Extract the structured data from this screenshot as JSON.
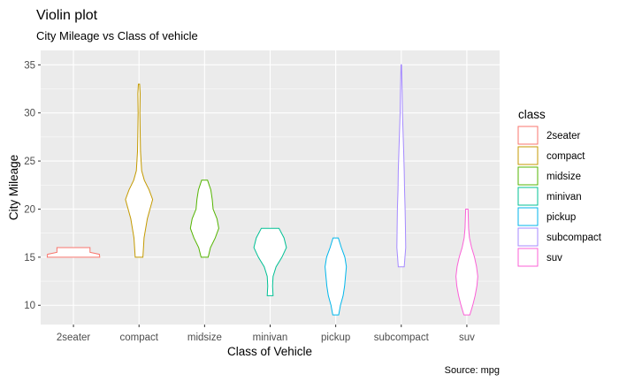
{
  "chart_data": {
    "type": "violin",
    "title": "Violin plot",
    "subtitle": "City Mileage vs Class of vehicle",
    "xlabel": "Class of Vehicle",
    "ylabel": "City Mileage",
    "caption": "Source: mpg",
    "ylim": [
      8,
      36.5
    ],
    "y_ticks": [
      10,
      15,
      20,
      25,
      30,
      35
    ],
    "grid": true,
    "legend": {
      "title": "class",
      "placement": "right"
    },
    "categories": [
      "2seater",
      "compact",
      "midsize",
      "minivan",
      "pickup",
      "subcompact",
      "suv"
    ],
    "series": [
      {
        "name": "2seater",
        "color": "#F8766D",
        "profile": [
          [
            15,
            0.89
          ],
          [
            15.3,
            0.88
          ],
          [
            15.5,
            0.56
          ],
          [
            16,
            0.56
          ]
        ]
      },
      {
        "name": "compact",
        "color": "#C49A00",
        "profile": [
          [
            15,
            0.13
          ],
          [
            17,
            0.17
          ],
          [
            19,
            0.28
          ],
          [
            20,
            0.37
          ],
          [
            21,
            0.46
          ],
          [
            22,
            0.34
          ],
          [
            23,
            0.18
          ],
          [
            24,
            0.09
          ],
          [
            26,
            0.05
          ],
          [
            28,
            0.04
          ],
          [
            30,
            0.03
          ],
          [
            32,
            0.04
          ],
          [
            33,
            0.02
          ]
        ]
      },
      {
        "name": "midsize",
        "color": "#53B400",
        "profile": [
          [
            15,
            0.12
          ],
          [
            16,
            0.2
          ],
          [
            17,
            0.36
          ],
          [
            18,
            0.48
          ],
          [
            19,
            0.42
          ],
          [
            20,
            0.29
          ],
          [
            21,
            0.26
          ],
          [
            22,
            0.21
          ],
          [
            23,
            0.1
          ]
        ]
      },
      {
        "name": "minivan",
        "color": "#00C094",
        "profile": [
          [
            11,
            0.1
          ],
          [
            12,
            0.08
          ],
          [
            13,
            0.1
          ],
          [
            14,
            0.2
          ],
          [
            15,
            0.4
          ],
          [
            16,
            0.55
          ],
          [
            17,
            0.47
          ],
          [
            18,
            0.3
          ]
        ]
      },
      {
        "name": "pickup",
        "color": "#00B6EB",
        "profile": [
          [
            9,
            0.1
          ],
          [
            10,
            0.16
          ],
          [
            11,
            0.25
          ],
          [
            12,
            0.3
          ],
          [
            13,
            0.33
          ],
          [
            14,
            0.36
          ],
          [
            15,
            0.31
          ],
          [
            16,
            0.19
          ],
          [
            17,
            0.09
          ]
        ]
      },
      {
        "name": "subcompact",
        "color": "#A58AFF",
        "profile": [
          [
            14,
            0.1
          ],
          [
            16,
            0.15
          ],
          [
            18,
            0.14
          ],
          [
            20,
            0.13
          ],
          [
            22,
            0.11
          ],
          [
            24,
            0.1
          ],
          [
            26,
            0.08
          ],
          [
            28,
            0.06
          ],
          [
            30,
            0.04
          ],
          [
            32,
            0.03
          ],
          [
            35,
            0.01
          ]
        ]
      },
      {
        "name": "suv",
        "color": "#FB61D7",
        "profile": [
          [
            9,
            0.1
          ],
          [
            10,
            0.2
          ],
          [
            11,
            0.28
          ],
          [
            12,
            0.34
          ],
          [
            13,
            0.37
          ],
          [
            14,
            0.33
          ],
          [
            15,
            0.26
          ],
          [
            16,
            0.16
          ],
          [
            17,
            0.09
          ],
          [
            18,
            0.06
          ],
          [
            20,
            0.04
          ]
        ]
      }
    ]
  }
}
